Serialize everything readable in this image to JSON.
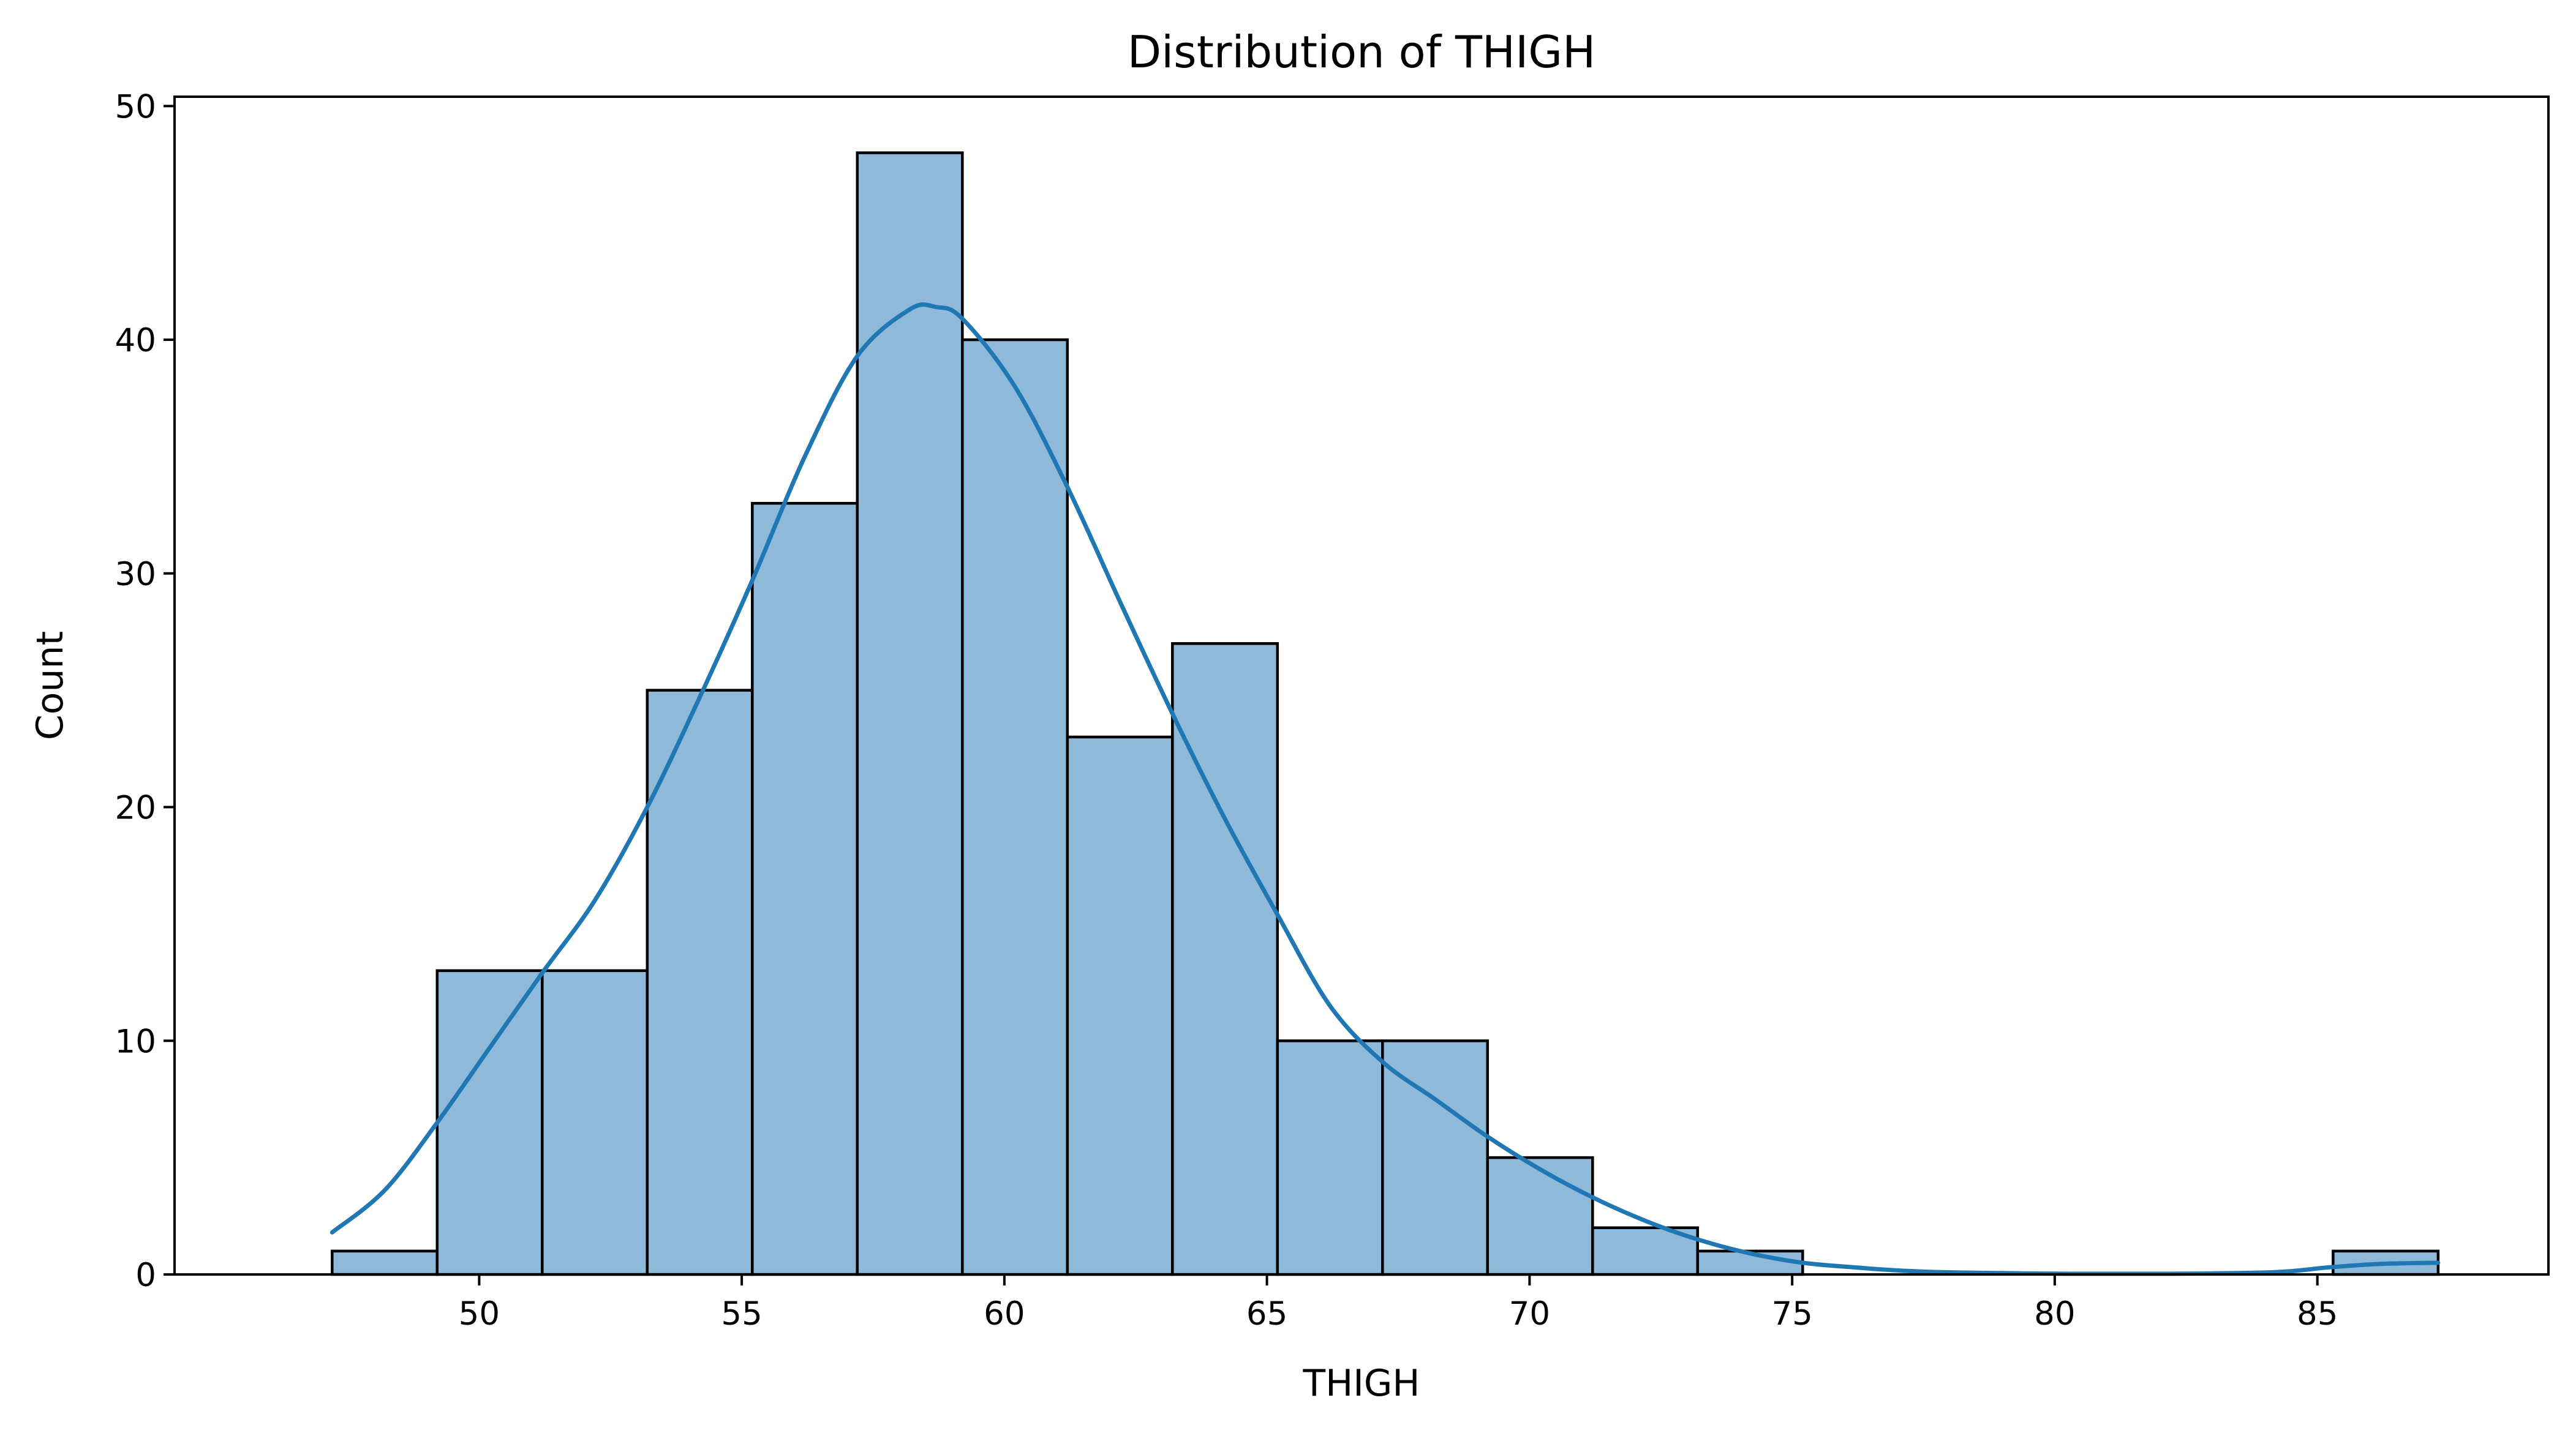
{
  "chart_data": {
    "type": "bar",
    "title": "Distribution of THIGH",
    "xlabel": "THIGH",
    "ylabel": "Count",
    "xlim": [
      44.2,
      89.4
    ],
    "ylim": [
      0,
      50.4
    ],
    "x_ticks": [
      50,
      55,
      60,
      65,
      70,
      75,
      80,
      85
    ],
    "y_ticks": [
      0,
      10,
      20,
      30,
      40,
      50
    ],
    "grid": false,
    "bins": {
      "edges": [
        47.2,
        49.2,
        51.2,
        53.2,
        55.2,
        57.2,
        59.2,
        61.2,
        63.2,
        65.2,
        67.2,
        69.2,
        71.2,
        73.2,
        75.2,
        77.2,
        79.2,
        81.2,
        83.2,
        85.3,
        87.3
      ],
      "counts": [
        1,
        13,
        13,
        25,
        33,
        48,
        40,
        23,
        27,
        10,
        10,
        5,
        2,
        1,
        0,
        0,
        0,
        0,
        0,
        1
      ]
    },
    "kde": {
      "x": [
        47.2,
        48.2,
        49.2,
        50.2,
        51.2,
        52.2,
        53.2,
        54.2,
        55.2,
        56.2,
        57.2,
        58.2,
        58.7,
        59.2,
        60.2,
        61.2,
        62.2,
        63.2,
        64.2,
        65.2,
        66.2,
        67.2,
        68.2,
        69.2,
        70.2,
        71.2,
        72.2,
        73.2,
        74.2,
        75.2,
        76.2,
        77.2,
        78.2,
        80.2,
        82.2,
        84.2,
        85.2,
        86.2,
        87.3
      ],
      "y": [
        1.8,
        3.6,
        6.5,
        9.7,
        12.9,
        16.0,
        20.0,
        24.7,
        29.7,
        35.0,
        39.3,
        41.3,
        41.4,
        40.9,
        38.0,
        33.7,
        28.8,
        24.0,
        19.5,
        15.4,
        11.5,
        9.1,
        7.5,
        5.9,
        4.5,
        3.3,
        2.3,
        1.5,
        0.9,
        0.5,
        0.3,
        0.15,
        0.08,
        0.03,
        0.03,
        0.1,
        0.3,
        0.45,
        0.5
      ]
    },
    "colors": {
      "bar_fill": "#8fb9d9",
      "bar_edge": "#000000",
      "kde_line": "#1f77b4"
    }
  }
}
